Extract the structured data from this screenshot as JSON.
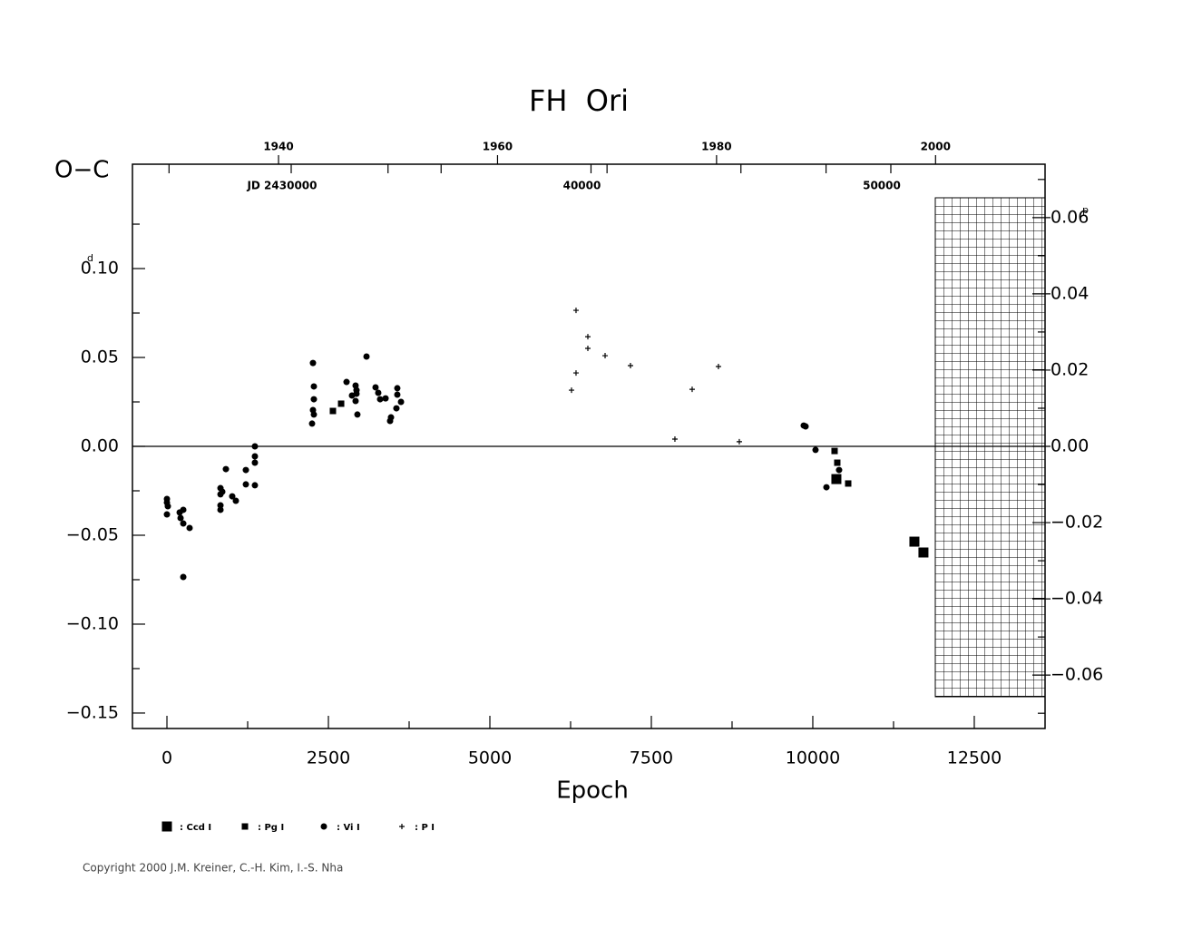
{
  "chart_data": {
    "type": "scatter",
    "title": "FH  Ori",
    "y_label": "O−C",
    "x_label": "Epoch",
    "y_unit": "d",
    "y2_unit": "p",
    "copyright": "Copyright 2000 J.M. Kreiner, C.-H. Kim, I.-S. Nha",
    "xlim": [
      -534,
      13596
    ],
    "xticks": [
      0,
      2500,
      5000,
      7500,
      10000,
      12500
    ],
    "xminor": [
      1250,
      3750,
      6250,
      8750,
      11250
    ],
    "ylim": [
      -0.1587,
      0.1587
    ],
    "yticks": [
      {
        "value": -0.15,
        "label": "−0.15"
      },
      {
        "value": -0.1,
        "label": "−0.10"
      },
      {
        "value": -0.05,
        "label": "−0.05"
      },
      {
        "value": 0,
        "label": "0.00"
      },
      {
        "value": 0.05,
        "label": "0.05"
      },
      {
        "value": 0.1,
        "label": "0.10"
      }
    ],
    "yminor": [
      -0.125,
      -0.075,
      -0.025,
      0.025,
      0.075,
      0.125
    ],
    "y2lim": [
      -0.074,
      0.074
    ],
    "y2ticks": [
      {
        "value": -0.06,
        "label": "−0.06"
      },
      {
        "value": -0.04,
        "label": "−0.04"
      },
      {
        "value": -0.02,
        "label": "−0.02"
      },
      {
        "value": 0,
        "label": "0.00"
      },
      {
        "value": 0.02,
        "label": "0.02"
      },
      {
        "value": 0.04,
        "label": "0.04"
      },
      {
        "value": 0.06,
        "label": "0.06"
      }
    ],
    "y2minor": [
      -0.07,
      -0.05,
      -0.03,
      -0.01,
      0.01,
      0.03,
      0.05,
      0.07
    ],
    "x2lim": [
      1926.66,
      2010.0
    ],
    "x2ticks": [
      1940,
      1960,
      1980,
      2000
    ],
    "x2minor": [
      1930,
      1950,
      1970,
      1990
    ],
    "jdlim": [
      24705,
      55144
    ],
    "jdticks": [
      {
        "value": 30000,
        "label": "JD 2430000"
      },
      {
        "value": 40000,
        "label": "40000"
      },
      {
        "value": 50000,
        "label": "50000"
      }
    ],
    "jdminor": [
      35000,
      45000
    ],
    "series": [
      {
        "name": ": Ccd I",
        "marker": "square-large",
        "color": "#000000",
        "x": [
          10365,
          11573,
          11713
        ],
        "values": [
          -0.0184,
          -0.0536,
          -0.0597
        ]
      },
      {
        "name": ": Pg I",
        "marker": "square",
        "color": "#000000",
        "x": [
          2570,
          2697,
          10337,
          10379,
          10548
        ],
        "values": [
          0.0199,
          0.024,
          -0.0026,
          -0.0092,
          -0.0209
        ]
      },
      {
        "name": ": Vi I",
        "marker": "circle",
        "color": "#000000",
        "x": [
          0,
          0,
          14,
          0,
          197,
          253,
          211,
          253,
          351,
          253,
          829,
          857,
          829,
          829,
          829,
          913,
          1011,
          1067,
          1222,
          1222,
          1362,
          1362,
          1362,
          1362,
          2261,
          2275,
          2275,
          2261,
          2275,
          2247,
          2781,
          2865,
          2921,
          2935,
          2935,
          2921,
          2949,
          3090,
          3230,
          3272,
          3301,
          3385,
          3469,
          3455,
          3567,
          3567,
          3553,
          3624,
          9860,
          9888,
          10042,
          10211,
          10407
        ],
        "values": [
          -0.0296,
          -0.0316,
          -0.0337,
          -0.0383,
          -0.0372,
          -0.0357,
          -0.0403,
          -0.0434,
          -0.0459,
          -0.0735,
          -0.0235,
          -0.0255,
          -0.027,
          -0.0332,
          -0.0357,
          -0.0128,
          -0.0281,
          -0.0306,
          -0.0133,
          -0.0214,
          -0.0092,
          -0.0056,
          0.0,
          -0.0219,
          0.0469,
          0.0337,
          0.0265,
          0.0204,
          0.0179,
          0.0128,
          0.0362,
          0.0286,
          0.0342,
          0.0316,
          0.0296,
          0.0255,
          0.0179,
          0.0505,
          0.0332,
          0.0301,
          0.0265,
          0.027,
          0.0163,
          0.0143,
          0.0327,
          0.0291,
          0.0214,
          0.025,
          0.0117,
          0.0112,
          -0.002,
          -0.023,
          -0.0133
        ]
      },
      {
        "name": ": P I",
        "marker": "plus",
        "color": "#000000",
        "x": [
          6264,
          6334,
          6334,
          6517,
          6517,
          6784,
          7177,
          7865,
          8132,
          8539,
          8862
        ],
        "values": [
          0.0316,
          0.0765,
          0.0413,
          0.0617,
          0.0551,
          0.051,
          0.0454,
          0.0041,
          0.0321,
          0.0449,
          0.0026
        ]
      }
    ]
  }
}
